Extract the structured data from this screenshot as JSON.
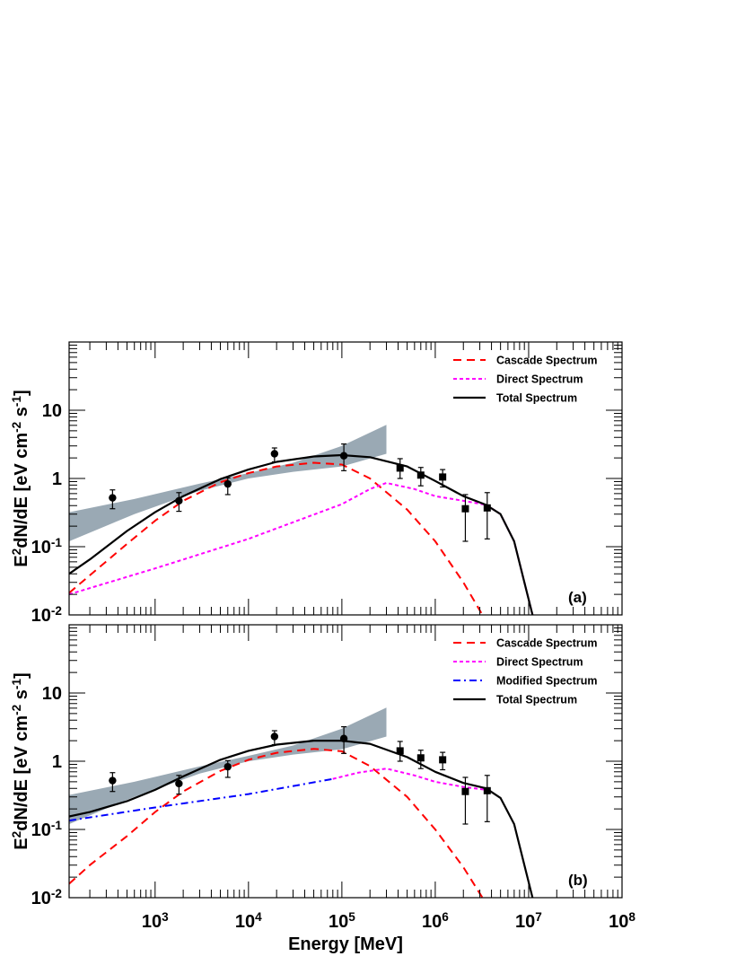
{
  "chart_data": [
    {
      "type": "line",
      "panel_label": "(a)",
      "xlabel": "",
      "ylabel": "E^2dN/dE [eV cm^-2 s^-1]",
      "xscale": "log",
      "yscale": "log",
      "xlim": [
        120,
        100000000
      ],
      "ylim": [
        0.01,
        100
      ],
      "x_tick_labels": [
        "10^3",
        "10^4",
        "10^5",
        "10^6",
        "10^7",
        "10^8"
      ],
      "y_tick_labels": [
        "10^-2",
        "10^-1",
        "1",
        "10"
      ],
      "legend_position": "top-right",
      "band": {
        "lower": [
          [
            120,
            0.12
          ],
          [
            600,
            0.3
          ],
          [
            3000,
            0.66
          ],
          [
            10000,
            1.0
          ],
          [
            30000,
            1.25
          ],
          [
            100000,
            1.5
          ],
          [
            300000,
            2.3
          ]
        ],
        "upper": [
          [
            120,
            0.32
          ],
          [
            600,
            0.5
          ],
          [
            3000,
            0.84
          ],
          [
            10000,
            1.2
          ],
          [
            30000,
            1.7
          ],
          [
            100000,
            3.0
          ],
          [
            300000,
            6.1
          ]
        ]
      },
      "series": [
        {
          "name": "Cascade Spectrum",
          "style": "dashed",
          "color": "#ff0000",
          "x": [
            120,
            200,
            500,
            1000,
            2000,
            5000,
            10000,
            20000,
            50000,
            100000,
            200000,
            500000,
            1000000,
            2000000,
            3200000
          ],
          "y": [
            0.021,
            0.038,
            0.11,
            0.24,
            0.47,
            0.88,
            1.2,
            1.5,
            1.7,
            1.6,
            1.0,
            0.35,
            0.12,
            0.03,
            0.01
          ]
        },
        {
          "name": "Direct Spectrum",
          "style": "dotted",
          "color": "#ff00ff",
          "x": [
            120,
            1000,
            10000,
            100000,
            200000,
            300000,
            600000,
            1000000,
            2000000,
            3500000,
            5000000,
            7000000,
            9000000,
            11000000
          ],
          "y": [
            0.02,
            0.048,
            0.13,
            0.42,
            0.7,
            0.86,
            0.7,
            0.55,
            0.47,
            0.41,
            0.3,
            0.12,
            0.03,
            0.01
          ]
        },
        {
          "name": "Total Spectrum",
          "style": "solid",
          "color": "#000000",
          "x": [
            120,
            200,
            500,
            1000,
            2000,
            5000,
            10000,
            20000,
            50000,
            100000,
            200000,
            500000,
            1000000,
            2000000,
            3500000,
            5000000,
            7000000,
            9000000,
            11000000
          ],
          "y": [
            0.04,
            0.065,
            0.17,
            0.32,
            0.55,
            0.98,
            1.35,
            1.75,
            2.1,
            2.2,
            2.05,
            1.5,
            0.92,
            0.55,
            0.41,
            0.3,
            0.12,
            0.03,
            0.01
          ]
        }
      ],
      "points": [
        {
          "marker": "circle",
          "x": 350,
          "y": 0.52,
          "ylo": 0.36,
          "yhi": 0.68
        },
        {
          "marker": "circle",
          "x": 1800,
          "y": 0.47,
          "ylo": 0.33,
          "yhi": 0.62
        },
        {
          "marker": "circle",
          "x": 6000,
          "y": 0.83,
          "ylo": 0.58,
          "yhi": 1.02
        },
        {
          "marker": "circle",
          "x": 19000,
          "y": 2.3,
          "ylo": 1.75,
          "yhi": 2.8
        },
        {
          "marker": "circle",
          "x": 105000,
          "y": 2.15,
          "ylo": 1.3,
          "yhi": 3.2
        },
        {
          "marker": "square",
          "x": 420000,
          "y": 1.42,
          "ylo": 1.0,
          "yhi": 1.95
        },
        {
          "marker": "square",
          "x": 700000,
          "y": 1.12,
          "ylo": 0.78,
          "yhi": 1.45
        },
        {
          "marker": "square",
          "x": 1200000,
          "y": 1.05,
          "ylo": 0.75,
          "yhi": 1.35
        },
        {
          "marker": "square",
          "x": 2100000,
          "y": 0.36,
          "ylo": 0.12,
          "yhi": 0.58
        },
        {
          "marker": "square",
          "x": 3600000,
          "y": 0.37,
          "ylo": 0.13,
          "yhi": 0.62
        }
      ]
    },
    {
      "type": "line",
      "panel_label": "(b)",
      "xlabel": "Energy [MeV]",
      "ylabel": "E^2dN/dE [eV cm^-2 s^-1]",
      "xscale": "log",
      "yscale": "log",
      "xlim": [
        120,
        100000000
      ],
      "ylim": [
        0.01,
        100
      ],
      "x_tick_labels": [
        "10^3",
        "10^4",
        "10^5",
        "10^6",
        "10^7",
        "10^8"
      ],
      "y_tick_labels": [
        "10^-2",
        "10^-1",
        "1",
        "10"
      ],
      "legend_position": "top-right",
      "band": {
        "lower": [
          [
            120,
            0.12
          ],
          [
            600,
            0.3
          ],
          [
            3000,
            0.66
          ],
          [
            10000,
            1.0
          ],
          [
            30000,
            1.25
          ],
          [
            100000,
            1.5
          ],
          [
            300000,
            2.3
          ]
        ],
        "upper": [
          [
            120,
            0.32
          ],
          [
            600,
            0.5
          ],
          [
            3000,
            0.84
          ],
          [
            10000,
            1.2
          ],
          [
            30000,
            1.7
          ],
          [
            100000,
            3.0
          ],
          [
            300000,
            6.1
          ]
        ]
      },
      "series": [
        {
          "name": "Cascade Spectrum",
          "style": "dashed",
          "color": "#ff0000",
          "x": [
            120,
            200,
            500,
            1000,
            2000,
            5000,
            10000,
            20000,
            50000,
            100000,
            200000,
            500000,
            1000000,
            2000000,
            3200000
          ],
          "y": [
            0.016,
            0.03,
            0.08,
            0.18,
            0.36,
            0.72,
            1.05,
            1.33,
            1.52,
            1.4,
            0.85,
            0.3,
            0.1,
            0.028,
            0.01
          ]
        },
        {
          "name": "Direct Spectrum",
          "style": "dotted",
          "color": "#ff00ff",
          "x": [
            80000,
            150000,
            300000,
            600000,
            1000000,
            2000000,
            3500000
          ],
          "y": [
            0.55,
            0.68,
            0.78,
            0.62,
            0.5,
            0.42,
            0.38
          ]
        },
        {
          "name": "Modified Spectrum",
          "style": "dashdot",
          "color": "#0000ff",
          "x": [
            120,
            1000,
            10000,
            80000
          ],
          "y": [
            0.135,
            0.21,
            0.33,
            0.55
          ]
        },
        {
          "name": "Total Spectrum",
          "style": "solid",
          "color": "#000000",
          "x": [
            120,
            200,
            500,
            1000,
            2000,
            5000,
            10000,
            20000,
            50000,
            100000,
            200000,
            500000,
            1000000,
            2000000,
            3500000,
            5000000,
            7000000,
            9000000,
            11000000
          ],
          "y": [
            0.155,
            0.18,
            0.26,
            0.38,
            0.6,
            1.05,
            1.42,
            1.75,
            2.0,
            2.0,
            1.8,
            1.15,
            0.7,
            0.48,
            0.4,
            0.29,
            0.12,
            0.03,
            0.01
          ]
        }
      ],
      "points": [
        {
          "marker": "circle",
          "x": 350,
          "y": 0.52,
          "ylo": 0.36,
          "yhi": 0.68
        },
        {
          "marker": "circle",
          "x": 1800,
          "y": 0.47,
          "ylo": 0.33,
          "yhi": 0.62
        },
        {
          "marker": "circle",
          "x": 6000,
          "y": 0.83,
          "ylo": 0.58,
          "yhi": 1.02
        },
        {
          "marker": "circle",
          "x": 19000,
          "y": 2.3,
          "ylo": 1.75,
          "yhi": 2.8
        },
        {
          "marker": "circle",
          "x": 105000,
          "y": 2.15,
          "ylo": 1.3,
          "yhi": 3.2
        },
        {
          "marker": "square",
          "x": 420000,
          "y": 1.42,
          "ylo": 1.0,
          "yhi": 1.95
        },
        {
          "marker": "square",
          "x": 700000,
          "y": 1.12,
          "ylo": 0.78,
          "yhi": 1.45
        },
        {
          "marker": "square",
          "x": 1200000,
          "y": 1.05,
          "ylo": 0.75,
          "yhi": 1.35
        },
        {
          "marker": "square",
          "x": 2100000,
          "y": 0.36,
          "ylo": 0.12,
          "yhi": 0.58
        },
        {
          "marker": "square",
          "x": 3600000,
          "y": 0.37,
          "ylo": 0.13,
          "yhi": 0.62
        }
      ]
    }
  ],
  "colors": {
    "band": "#9aa9b4",
    "axis": "#000000"
  }
}
